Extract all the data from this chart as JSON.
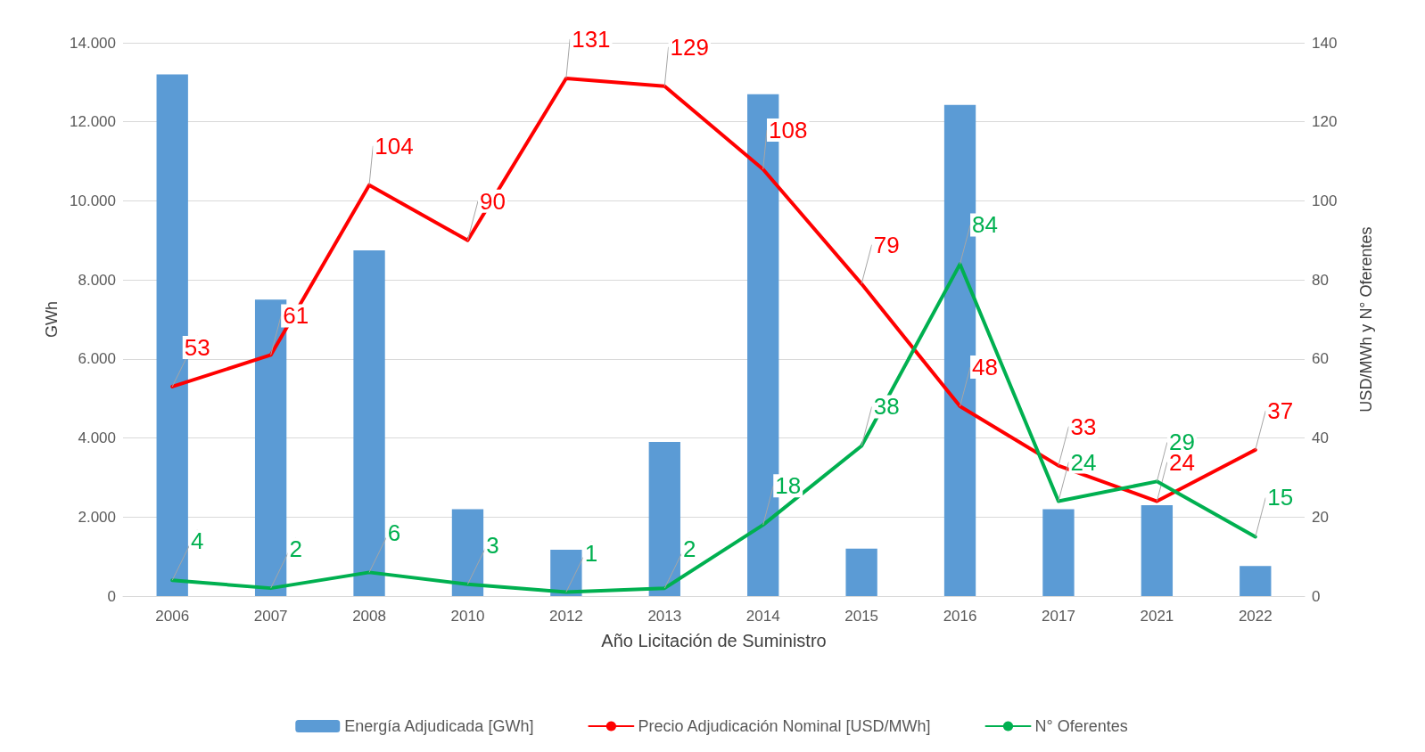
{
  "chart_data": {
    "type": "bar",
    "xlabel": "Año Licitación de Suministro",
    "ylabel": "GWh",
    "y2label": "USD/MWh y N° Oferentes",
    "categories": [
      "2006",
      "2007",
      "2008",
      "2010",
      "2012",
      "2013",
      "2014",
      "2015",
      "2016",
      "2017",
      "2021",
      "2022"
    ],
    "series": [
      {
        "name": "Energía Adjudicada [GWh]",
        "color": "#5b9bd5",
        "values": [
          13200,
          7500,
          8750,
          2200,
          1170,
          3900,
          12700,
          1200,
          12430,
          2200,
          2300,
          760
        ]
      },
      {
        "name": "Precio Adjudicación Nominal [USD/MWh]",
        "type": "line",
        "axis": "y2",
        "color": "#ff0000",
        "values": [
          53,
          61,
          104,
          90,
          131,
          129,
          108,
          79,
          48,
          33,
          24,
          37
        ],
        "value_labels": [
          "53",
          "61",
          "104",
          "90",
          "131",
          "129",
          "108",
          "79",
          "48",
          "33",
          "24",
          "37"
        ]
      },
      {
        "name": "N° Oferentes",
        "type": "line",
        "axis": "y2",
        "color": "#00b050",
        "values": [
          4,
          2,
          6,
          3,
          1,
          2,
          18,
          38,
          84,
          24,
          29,
          15
        ],
        "value_labels": [
          "4",
          "2",
          "6",
          "3",
          "1",
          "2",
          "18",
          "38",
          "84",
          "24",
          "29",
          "15"
        ]
      }
    ],
    "ylim": [
      0,
      14000
    ],
    "yticks": [
      {
        "value": 0,
        "label": "0"
      },
      {
        "value": 2000,
        "label": "2.000"
      },
      {
        "value": 4000,
        "label": "4.000"
      },
      {
        "value": 6000,
        "label": "6.000"
      },
      {
        "value": 8000,
        "label": "8.000"
      },
      {
        "value": 10000,
        "label": "10.000"
      },
      {
        "value": 12000,
        "label": "12.000"
      },
      {
        "value": 14000,
        "label": "14.000"
      }
    ],
    "y2lim": [
      0,
      140
    ],
    "y2ticks": [
      0,
      20,
      40,
      60,
      80,
      100,
      120,
      140
    ],
    "grid": "y",
    "legend": "bottom",
    "marker": "none",
    "line_style": "solid"
  }
}
